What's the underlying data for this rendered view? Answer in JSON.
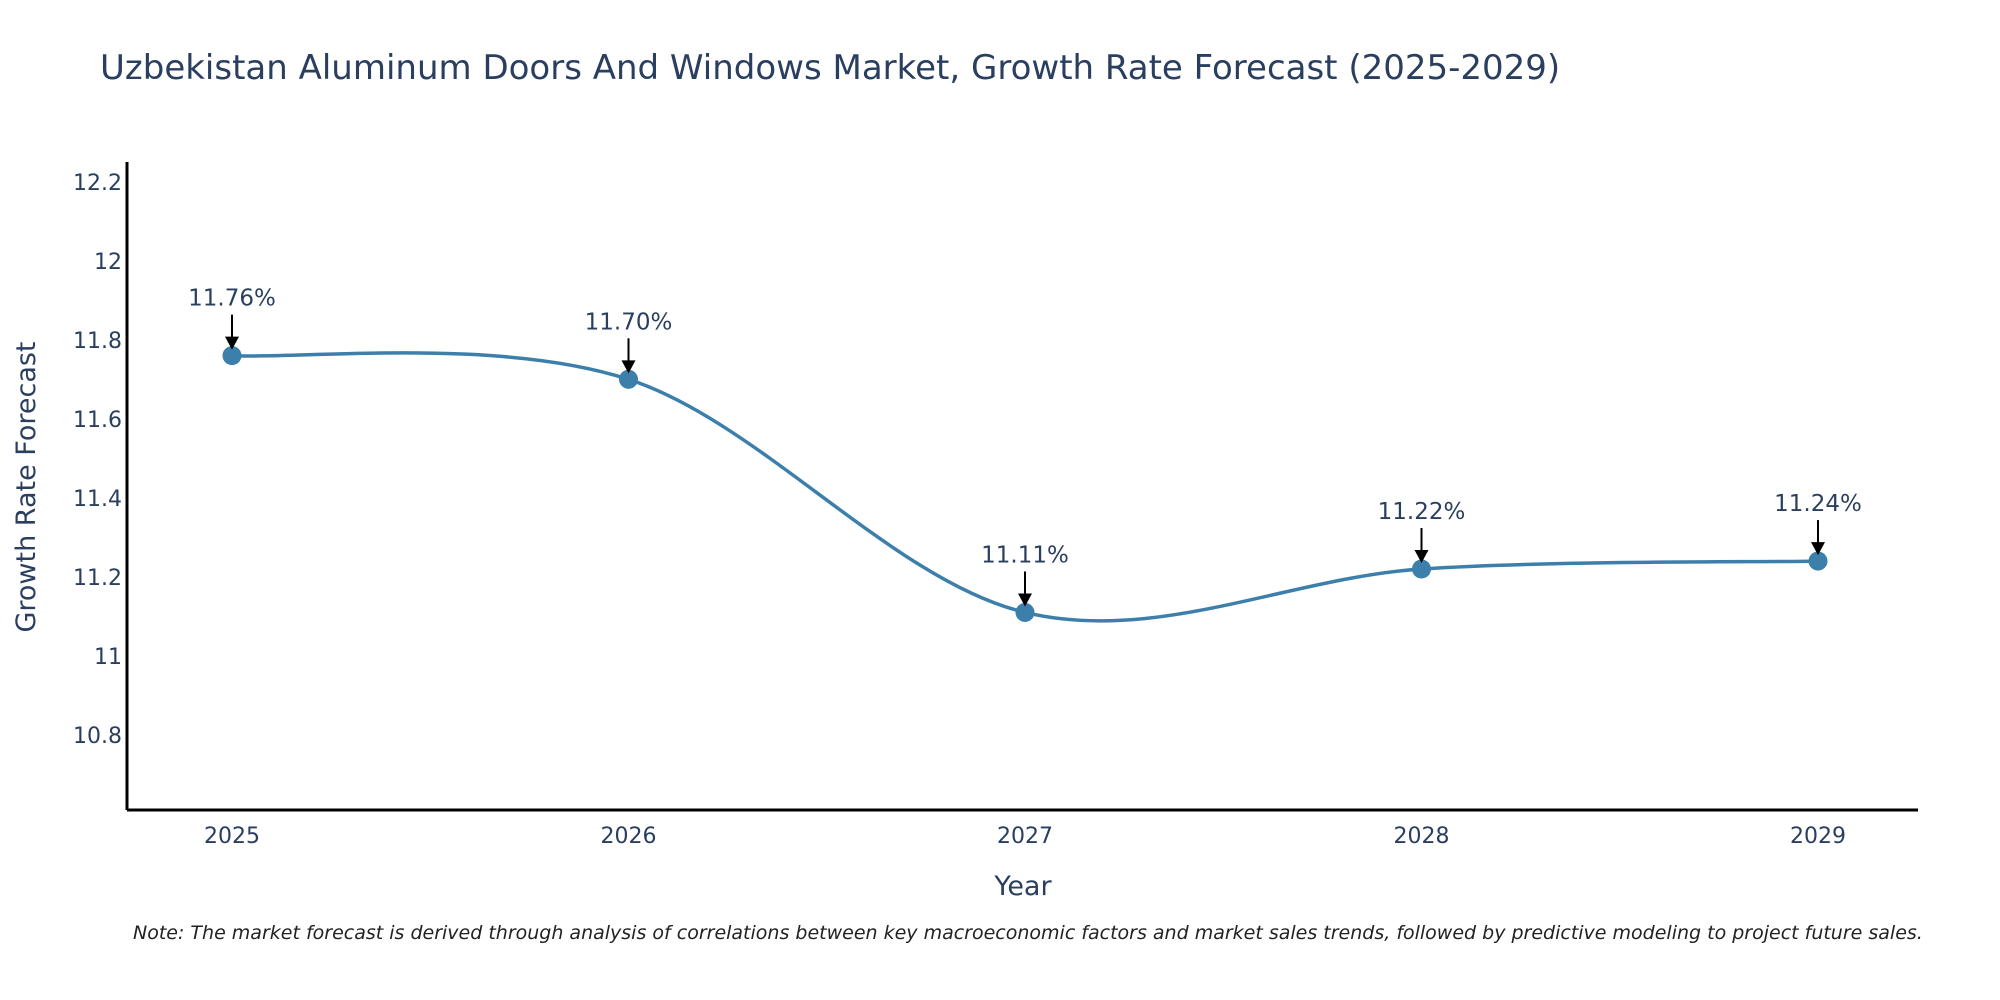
{
  "chart_data": {
    "type": "line",
    "title": "Uzbekistan Aluminum Doors And Windows Market, Growth Rate Forecast (2025-2029)",
    "xlabel": "Year",
    "ylabel": "Growth Rate Forecast",
    "categories": [
      "2025",
      "2026",
      "2027",
      "2028",
      "2029"
    ],
    "values": [
      11.76,
      11.7,
      11.11,
      11.22,
      11.24
    ],
    "data_labels": [
      "11.76%",
      "11.70%",
      "11.11%",
      "11.22%",
      "11.24%"
    ],
    "yticks": [
      10.8,
      11,
      11.2,
      11.4,
      11.6,
      11.8,
      12,
      12.2
    ],
    "ytick_labels": [
      "10.8",
      "11",
      "11.2",
      "11.4",
      "11.6",
      "11.8",
      "12",
      "12.2"
    ],
    "ylim": [
      10.61,
      12.25
    ],
    "grid": false,
    "line_shape": "spline",
    "series_color": "#3d7fab",
    "note": "Note: The market forecast is derived through analysis of correlations between key macroeconomic factors and market sales trends, followed by predictive modeling to project future sales."
  }
}
